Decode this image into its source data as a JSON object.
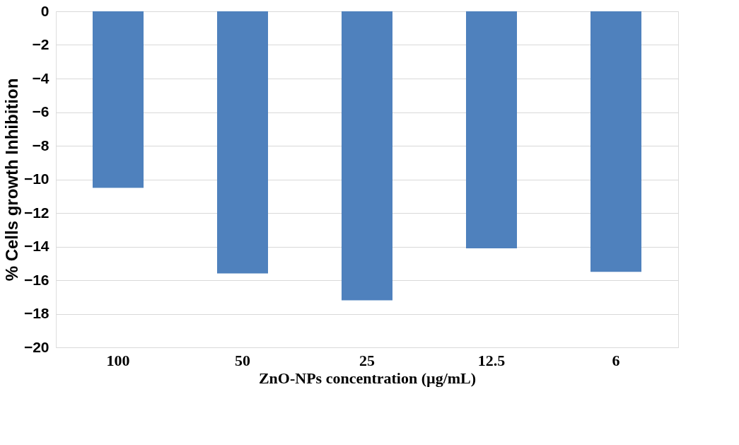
{
  "chart_data": {
    "type": "bar",
    "xlabel": "ZnO-NPs concentration (µg/mL)",
    "ylabel": "% Cells growth Inhibition",
    "categories": [
      "100",
      "50",
      "25",
      "12.5",
      "6"
    ],
    "values": [
      -10.5,
      -15.6,
      -17.2,
      -14.1,
      -15.5
    ],
    "color": "#4f81bd",
    "ylim": [
      -20,
      0
    ],
    "yticks": [
      0,
      -2,
      -4,
      -6,
      -8,
      -10,
      -12,
      -14,
      -16,
      -18,
      -20
    ],
    "grid": "y"
  }
}
